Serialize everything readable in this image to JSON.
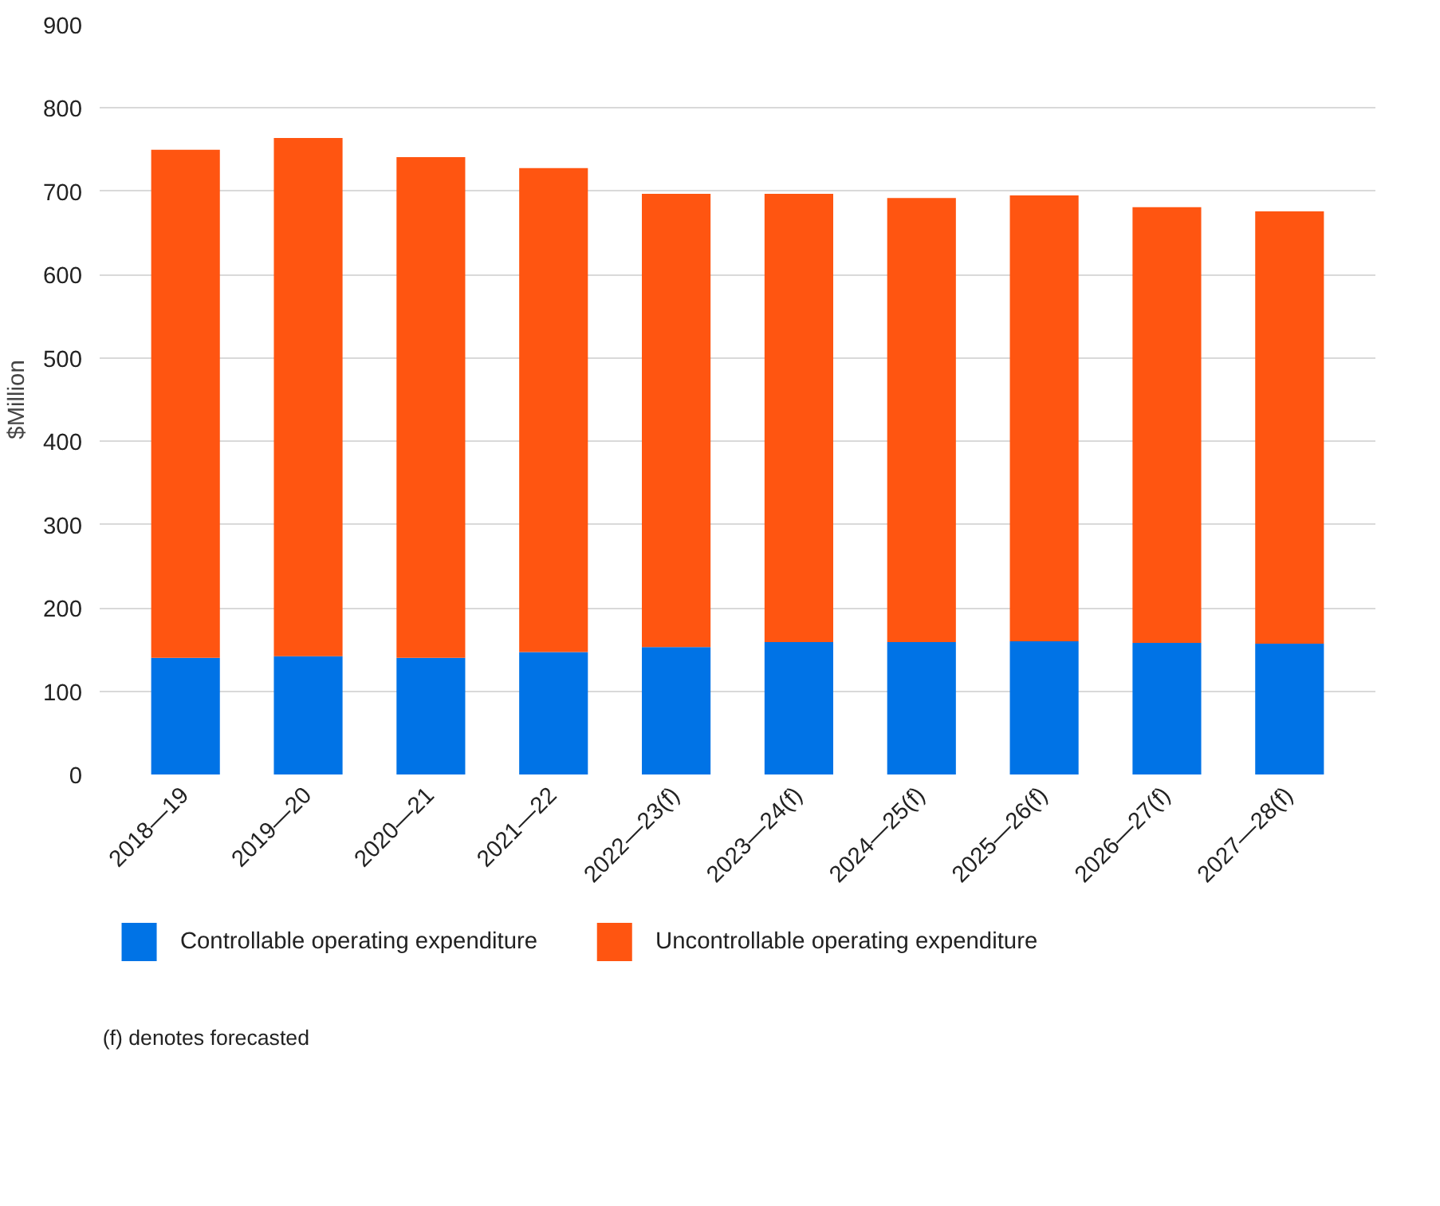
{
  "chart_data": {
    "type": "bar",
    "stacked": true,
    "ylabel": "$Million",
    "categories": [
      "2018—19",
      "2019—20",
      "2020—21",
      "2021—22",
      "2022—23(f)",
      "2023—24(f)",
      "2024—25(f)",
      "2025—26(f)",
      "2026—27(f)",
      "2027—28(f)"
    ],
    "series": [
      {
        "name": "Controllable operating expenditure",
        "color": "#0073e6",
        "values": [
          140,
          142,
          140,
          147,
          153,
          159,
          159,
          160,
          158,
          157
        ]
      },
      {
        "name": "Uncontrollable operating expenditure",
        "color": "#ff5511",
        "values": [
          610,
          622,
          601,
          581,
          544,
          538,
          533,
          535,
          523,
          519
        ]
      }
    ],
    "ylim": [
      0,
      900
    ],
    "yticks": [
      0,
      100,
      200,
      300,
      400,
      500,
      600,
      700,
      800,
      900
    ],
    "grid": "y",
    "legend": "bottom",
    "annotations": [
      "(f) denotes forecasted"
    ]
  }
}
